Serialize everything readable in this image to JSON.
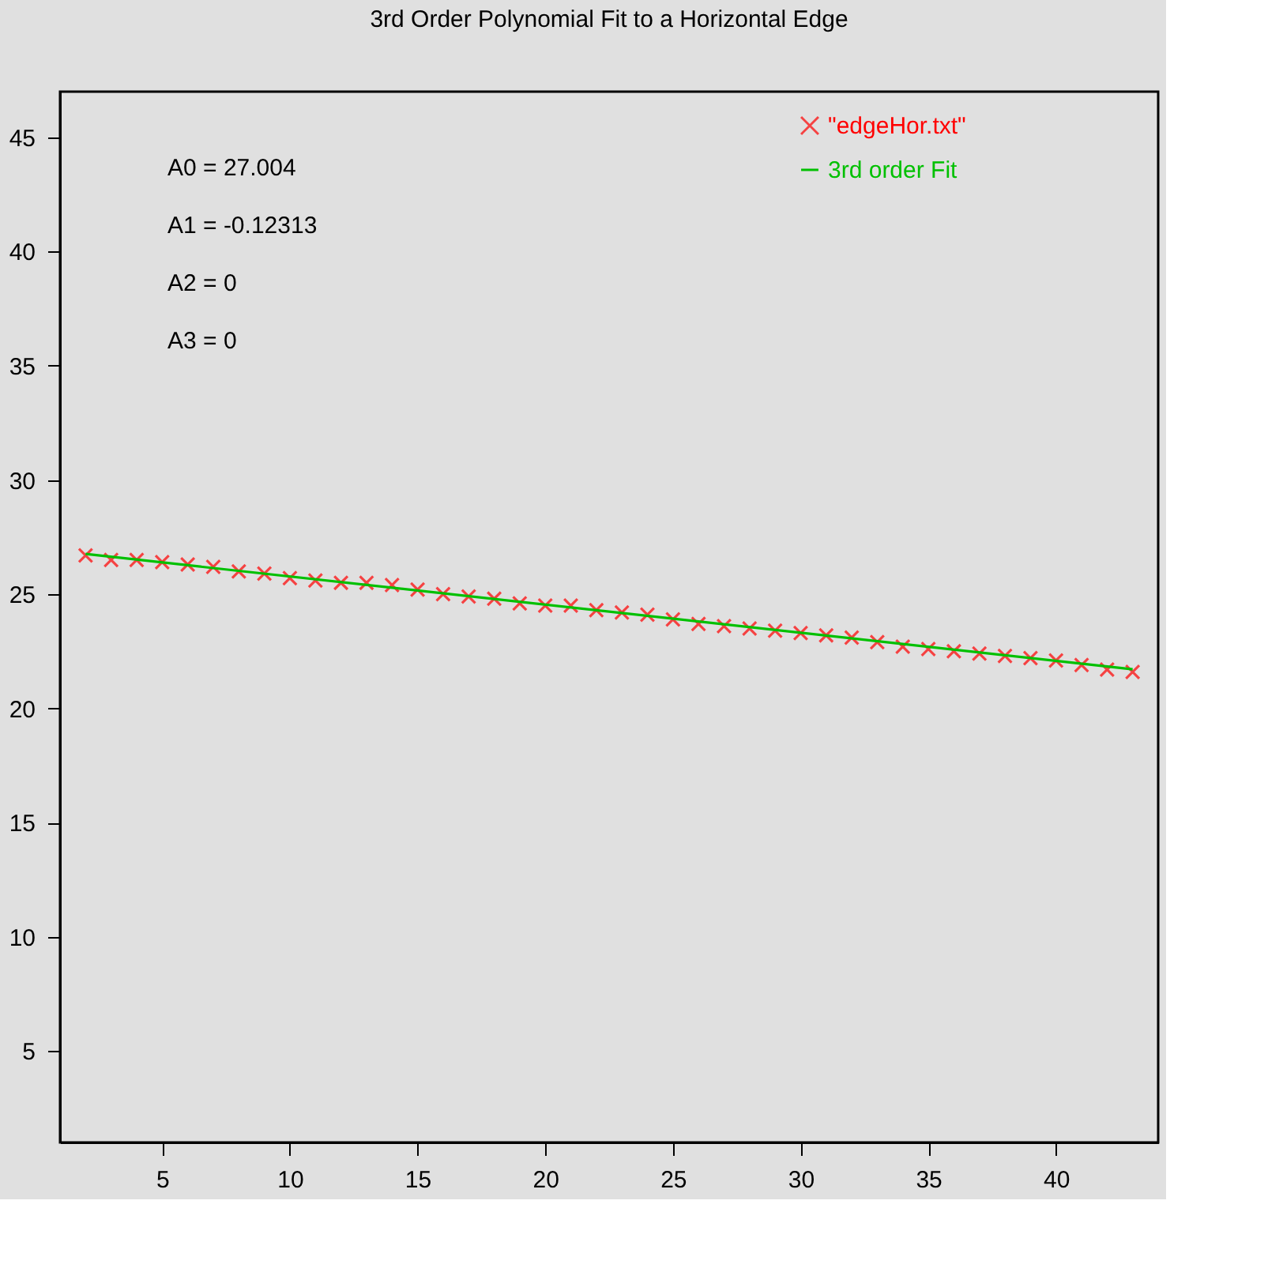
{
  "chart_data": {
    "type": "scatter",
    "title": "3rd Order Polynomial Fit to a Horizontal Edge",
    "x": [
      2,
      3,
      4,
      5,
      6,
      7,
      8,
      9,
      10,
      11,
      12,
      13,
      14,
      15,
      16,
      17,
      18,
      19,
      20,
      21,
      22,
      23,
      24,
      25,
      26,
      27,
      28,
      29,
      30,
      31,
      32,
      33,
      34,
      35,
      36,
      37,
      38,
      39,
      40,
      41,
      42,
      43
    ],
    "series": [
      {
        "name": "\"edgeHor.txt\"",
        "color": "#ff0000",
        "marker": "cross",
        "values": [
          26.7,
          26.5,
          26.5,
          26.4,
          26.3,
          26.2,
          26.0,
          25.9,
          25.7,
          25.6,
          25.5,
          25.5,
          25.4,
          25.2,
          25.0,
          24.9,
          24.8,
          24.6,
          24.5,
          24.5,
          24.3,
          24.2,
          24.1,
          23.9,
          23.7,
          23.6,
          23.5,
          23.4,
          23.3,
          23.2,
          23.1,
          22.9,
          22.7,
          22.6,
          22.5,
          22.4,
          22.3,
          22.2,
          22.1,
          21.9,
          21.7,
          21.6
        ]
      },
      {
        "name": "3rd order Fit",
        "color": "#00c000",
        "type": "line",
        "line_style": "solid",
        "x": [
          2,
          43
        ],
        "values": [
          26.76,
          21.71
        ]
      }
    ],
    "annotations": [
      "A0 = 27.004",
      "A1 = -0.12313",
      "A2 = 0",
      "A3 = 0"
    ],
    "xlim": [
      1,
      44
    ],
    "ylim": [
      1,
      47
    ],
    "xticks": [
      5,
      10,
      15,
      20,
      25,
      30,
      35,
      40
    ],
    "yticks": [
      5,
      10,
      15,
      20,
      25,
      30,
      35,
      40,
      45
    ],
    "grid": false,
    "legend": "top right"
  }
}
